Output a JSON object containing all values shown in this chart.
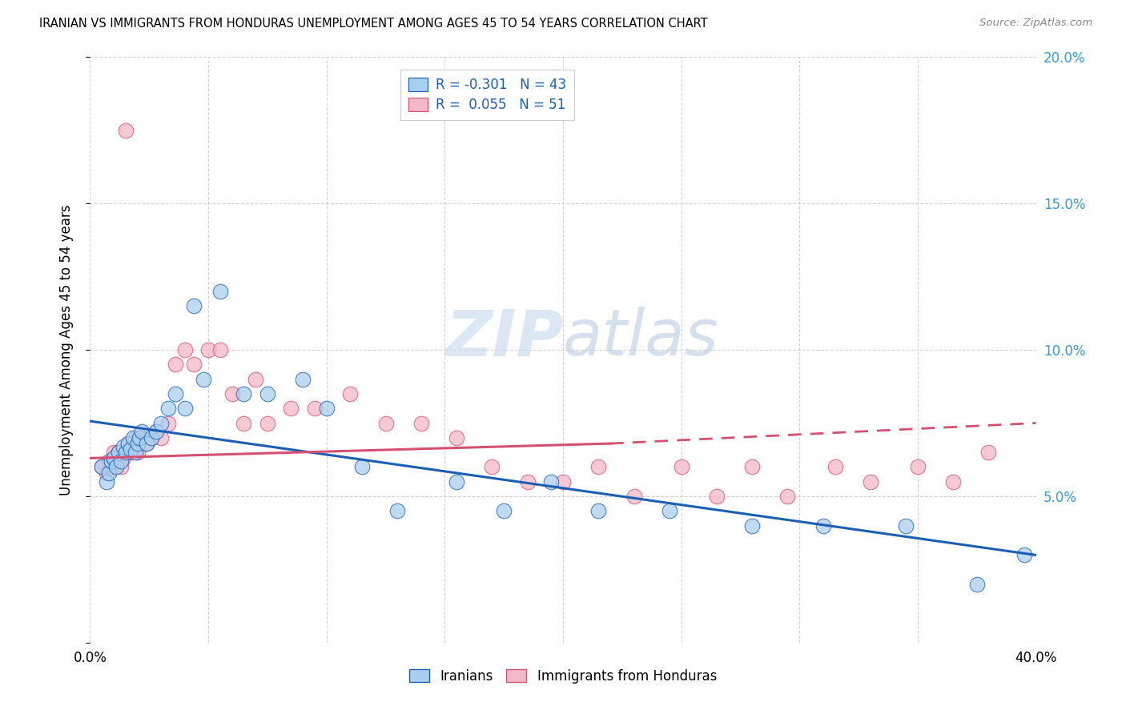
{
  "title": "IRANIAN VS IMMIGRANTS FROM HONDURAS UNEMPLOYMENT AMONG AGES 45 TO 54 YEARS CORRELATION CHART",
  "source": "Source: ZipAtlas.com",
  "ylabel": "Unemployment Among Ages 45 to 54 years",
  "xlim": [
    0.0,
    0.4
  ],
  "ylim": [
    0.0,
    0.2
  ],
  "legend_r_iranian": "-0.301",
  "legend_n_iranian": "43",
  "legend_r_honduras": "0.055",
  "legend_n_honduras": "51",
  "color_iranian": "#A8CFF0",
  "color_honduras": "#F5B8C8",
  "line_color_iranian": "#1A5FB4",
  "line_color_honduras": "#D45070",
  "watermark_zip": "ZIP",
  "watermark_atlas": "atlas",
  "iranians_x": [
    0.005,
    0.007,
    0.008,
    0.009,
    0.01,
    0.011,
    0.012,
    0.013,
    0.014,
    0.015,
    0.016,
    0.017,
    0.018,
    0.019,
    0.02,
    0.021,
    0.022,
    0.024,
    0.026,
    0.028,
    0.03,
    0.033,
    0.036,
    0.04,
    0.044,
    0.048,
    0.055,
    0.065,
    0.075,
    0.09,
    0.1,
    0.115,
    0.13,
    0.155,
    0.175,
    0.195,
    0.215,
    0.245,
    0.28,
    0.31,
    0.345,
    0.375,
    0.395
  ],
  "iranians_y": [
    0.06,
    0.055,
    0.058,
    0.062,
    0.063,
    0.06,
    0.065,
    0.062,
    0.067,
    0.065,
    0.068,
    0.066,
    0.07,
    0.065,
    0.068,
    0.07,
    0.072,
    0.068,
    0.07,
    0.072,
    0.075,
    0.08,
    0.085,
    0.08,
    0.115,
    0.09,
    0.12,
    0.085,
    0.085,
    0.09,
    0.08,
    0.06,
    0.045,
    0.055,
    0.045,
    0.055,
    0.045,
    0.045,
    0.04,
    0.04,
    0.04,
    0.02,
    0.03
  ],
  "honduras_x": [
    0.005,
    0.007,
    0.008,
    0.009,
    0.01,
    0.011,
    0.012,
    0.013,
    0.014,
    0.015,
    0.016,
    0.017,
    0.018,
    0.019,
    0.02,
    0.022,
    0.024,
    0.026,
    0.028,
    0.03,
    0.033,
    0.036,
    0.04,
    0.044,
    0.05,
    0.055,
    0.06,
    0.065,
    0.07,
    0.075,
    0.085,
    0.095,
    0.11,
    0.125,
    0.14,
    0.155,
    0.17,
    0.185,
    0.2,
    0.215,
    0.23,
    0.25,
    0.265,
    0.28,
    0.295,
    0.315,
    0.33,
    0.35,
    0.365,
    0.38,
    0.015
  ],
  "honduras_y": [
    0.06,
    0.058,
    0.062,
    0.06,
    0.065,
    0.062,
    0.065,
    0.06,
    0.063,
    0.065,
    0.068,
    0.065,
    0.068,
    0.07,
    0.065,
    0.07,
    0.068,
    0.07,
    0.072,
    0.07,
    0.075,
    0.095,
    0.1,
    0.095,
    0.1,
    0.1,
    0.085,
    0.075,
    0.09,
    0.075,
    0.08,
    0.08,
    0.085,
    0.075,
    0.075,
    0.07,
    0.06,
    0.055,
    0.055,
    0.06,
    0.05,
    0.06,
    0.05,
    0.06,
    0.05,
    0.06,
    0.055,
    0.06,
    0.055,
    0.065,
    0.175
  ]
}
